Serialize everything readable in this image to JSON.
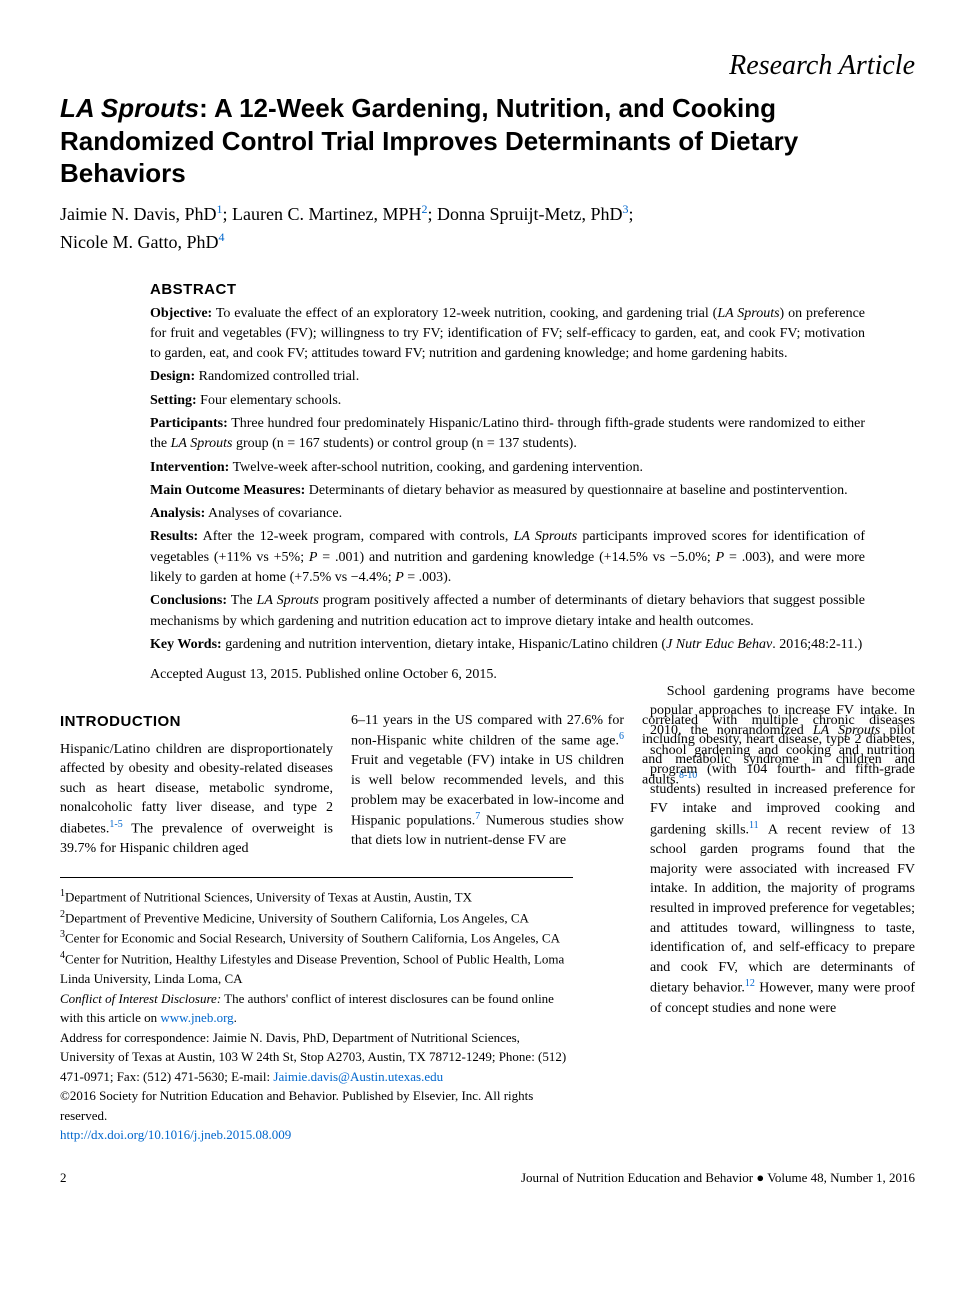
{
  "article_type": "Research Article",
  "title_italic": "LA Sprouts",
  "title_rest": ": A 12-Week Gardening, Nutrition, and Cooking Randomized Control Trial Improves Determinants of Dietary Behaviors",
  "authors": {
    "a1_name": "Jaimie N. Davis, PhD",
    "a1_sup": "1",
    "a2_name": "Lauren C. Martinez, MPH",
    "a2_sup": "2",
    "a3_name": "Donna Spruijt-Metz, PhD",
    "a3_sup": "3",
    "a4_name": "Nicole M. Gatto, PhD",
    "a4_sup": "4"
  },
  "abstract": {
    "heading": "ABSTRACT",
    "objective_label": "Objective:",
    "objective_pre": " To evaluate the effect of an exploratory 12-week nutrition, cooking, and gardening trial (",
    "objective_italic": "LA Sprouts",
    "objective_post": ") on preference for fruit and vegetables (FV); willingness to try FV; identification of FV; self-efficacy to garden, eat, and cook FV; motivation to garden, eat, and cook FV; attitudes toward FV; nutrition and gardening knowledge; and home gardening habits.",
    "design_label": "Design:",
    "design_text": " Randomized controlled trial.",
    "setting_label": "Setting:",
    "setting_text": " Four elementary schools.",
    "participants_label": "Participants:",
    "participants_pre": " Three hundred four predominately Hispanic/Latino third- through fifth-grade students were randomized to either the ",
    "participants_italic": "LA Sprouts",
    "participants_post": " group (n = 167 students) or control group (n = 137 students).",
    "intervention_label": "Intervention:",
    "intervention_text": " Twelve-week after-school nutrition, cooking, and gardening intervention.",
    "outcome_label": "Main Outcome Measures:",
    "outcome_text": " Determinants of dietary behavior as measured by questionnaire at baseline and postintervention.",
    "analysis_label": "Analysis:",
    "analysis_text": " Analyses of covariance.",
    "results_label": "Results:",
    "results_pre": " After the 12-week program, compared with controls, ",
    "results_italic": "LA Sprouts",
    "results_post": " participants improved scores for identification of vegetables (+11% vs +5%; ",
    "results_p1_italic": "P",
    "results_mid1": " = .001) and nutrition and gardening knowledge (+14.5% vs −5.0%; ",
    "results_p2_italic": "P",
    "results_mid2": " = .003), and were more likely to garden at home (+7.5% vs −4.4%; ",
    "results_p3_italic": "P",
    "results_end": " = .003).",
    "conclusions_label": "Conclusions:",
    "conclusions_pre": " The ",
    "conclusions_italic": "LA Sprouts",
    "conclusions_post": " program positively affected a number of determinants of dietary behaviors that suggest possible mechanisms by which gardening and nutrition education act to improve dietary intake and health outcomes.",
    "keywords_label": "Key Words:",
    "keywords_text": " gardening and nutrition intervention, dietary intake, Hispanic/Latino children (",
    "keywords_journal": "J Nutr Educ Behav",
    "keywords_citation": ". 2016;48:2-11.)",
    "accepted": "Accepted August 13, 2015. Published online October 6, 2015."
  },
  "intro": {
    "heading": "INTRODUCTION",
    "col1_text": "Hispanic/Latino children are disproportionately affected by obesity and obesity-related diseases such as heart disease, metabolic syndrome, nonalcoholic fatty liver disease, and type 2 diabetes.",
    "col1_ref": "1-5",
    "col1_text2": " The prevalence of overweight is 39.7% for Hispanic children aged",
    "col2_text": "6–11 years in the US compared with 27.6% for non-Hispanic white children of the same age.",
    "col2_ref1": "6",
    "col2_text2": " Fruit and vegetable (FV) intake in US children is well below recommended levels, and this problem may be exacerbated in low-income and Hispanic populations.",
    "col2_ref2": "7",
    "col2_text3": " Numerous studies show that diets low in nutrient-dense FV are",
    "col3_text": "correlated with multiple chronic diseases including obesity, heart disease, type 2 diabetes, and metabolic syndrome in children and adults.",
    "col3_ref1": "8-10",
    "col3_p2_pre": "School gardening programs have become popular approaches to increase FV intake. In 2010, the nonrandomized ",
    "col3_p2_italic": "LA Sprouts",
    "col3_p2_mid": " pilot school gardening and cooking and nutrition program (with 104 fourth- and fifth-grade students) resulted in increased preference for FV intake and improved cooking and gardening skills.",
    "col3_ref2": "11",
    "col3_p2_post": " A recent review of 13 school garden programs found that the majority were associated with increased FV intake. In addition, the majority of programs resulted in improved preference for vegetables; and attitudes toward, willingness to taste, identification of, and self-efficacy to prepare and cook FV, which are determinants of dietary behavior.",
    "col3_ref3": "12",
    "col3_p2_end": " However, many were proof of concept studies and none were"
  },
  "affiliations": {
    "a1_sup": "1",
    "a1_text": "Department of Nutritional Sciences, University of Texas at Austin, Austin, TX",
    "a2_sup": "2",
    "a2_text": "Department of Preventive Medicine, University of Southern California, Los Angeles, CA",
    "a3_sup": "3",
    "a3_text": "Center for Economic and Social Research, University of Southern California, Los Angeles, CA",
    "a4_sup": "4",
    "a4_text": "Center for Nutrition, Healthy Lifestyles and Disease Prevention, School of Public Health, Loma Linda University, Linda Loma, CA",
    "coi_label": "Conflict of Interest Disclosure:",
    "coi_text": " The authors' conflict of interest disclosures can be found online with this article on ",
    "coi_link": "www.jneb.org",
    "coi_period": ".",
    "correspondence": "Address for correspondence: Jaimie N. Davis, PhD, Department of Nutritional Sciences, University of Texas at Austin, 103 W 24th St, Stop A2703, Austin, TX 78712-1249; Phone: (512) 471-0971; Fax: (512) 471-5630; E-mail: ",
    "email": "Jaimie.davis@Austin.utexas.edu",
    "copyright": "©2016 Society for Nutrition Education and Behavior. Published by Elsevier, Inc. All rights reserved.",
    "doi": "http://dx.doi.org/10.1016/j.jneb.2015.08.009"
  },
  "footer": {
    "page": "2",
    "journal": "Journal of Nutrition Education and Behavior ● Volume 48, Number 1, 2016"
  }
}
